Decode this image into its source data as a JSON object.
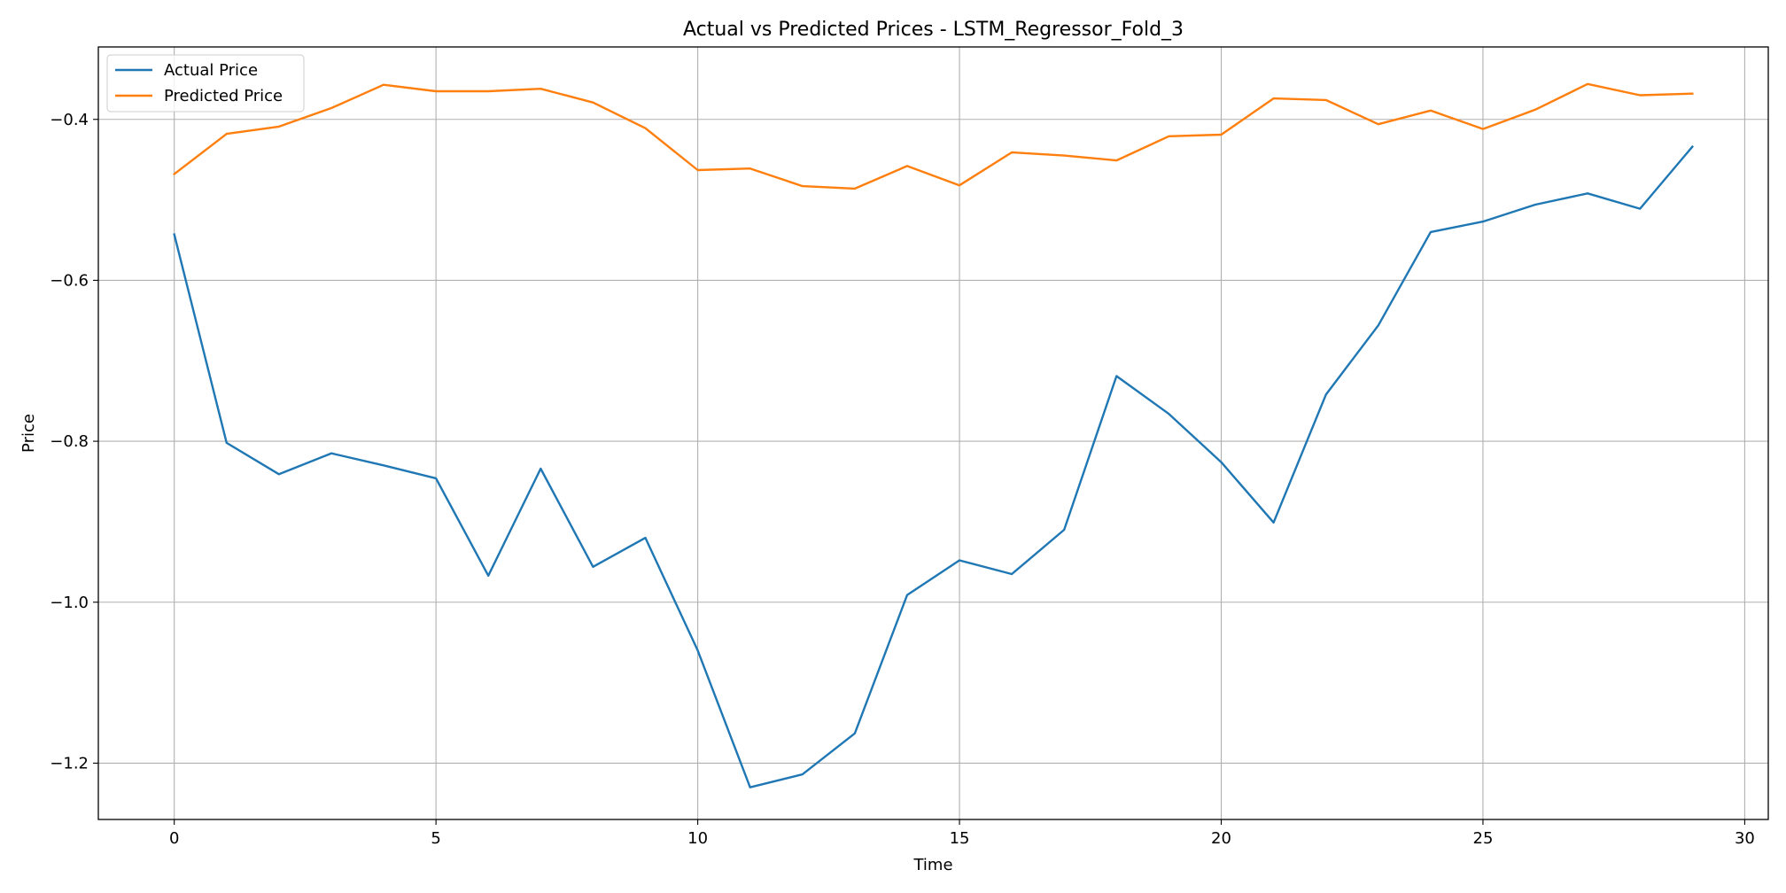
{
  "chart_data": {
    "type": "line",
    "title": "Actual vs Predicted Prices - LSTM_Regressor_Fold_3",
    "xlabel": "Time",
    "ylabel": "Price",
    "xlim": [
      -1.45,
      30.45
    ],
    "ylim": [
      -1.27,
      -0.31
    ],
    "xticks": [
      0,
      5,
      10,
      15,
      20,
      25,
      30
    ],
    "xtick_labels": [
      "0",
      "5",
      "10",
      "15",
      "20",
      "25",
      "30"
    ],
    "yticks": [
      -1.2,
      -1.0,
      -0.8,
      -0.6,
      -0.4
    ],
    "ytick_labels": [
      "−1.2",
      "−1.0",
      "−0.8",
      "−0.6",
      "−0.4"
    ],
    "grid": true,
    "legend_position": "upper-left",
    "x": [
      0,
      1,
      2,
      3,
      4,
      5,
      6,
      7,
      8,
      9,
      10,
      11,
      12,
      13,
      14,
      15,
      16,
      17,
      18,
      19,
      20,
      21,
      22,
      23,
      24,
      25,
      26,
      27,
      28,
      29
    ],
    "series": [
      {
        "name": "Actual Price",
        "color": "#1f77b4",
        "values": [
          -0.543,
          -0.802,
          -0.841,
          -0.815,
          -0.83,
          -0.846,
          -0.967,
          -0.834,
          -0.956,
          -0.92,
          -1.06,
          -1.23,
          -1.214,
          -1.163,
          -0.991,
          -0.948,
          -0.965,
          -0.91,
          -0.719,
          -0.766,
          -0.826,
          -0.901,
          -0.742,
          -0.656,
          -0.54,
          -0.527,
          -0.506,
          -0.492,
          -0.511,
          -0.434
        ]
      },
      {
        "name": "Predicted Price",
        "color": "#ff7f0e",
        "values": [
          -0.468,
          -0.418,
          -0.409,
          -0.386,
          -0.357,
          -0.365,
          -0.365,
          -0.362,
          -0.379,
          -0.411,
          -0.463,
          -0.461,
          -0.483,
          -0.486,
          -0.458,
          -0.482,
          -0.441,
          -0.445,
          -0.451,
          -0.421,
          -0.419,
          -0.374,
          -0.376,
          -0.406,
          -0.389,
          -0.412,
          -0.388,
          -0.356,
          -0.37,
          -0.368
        ]
      }
    ]
  }
}
